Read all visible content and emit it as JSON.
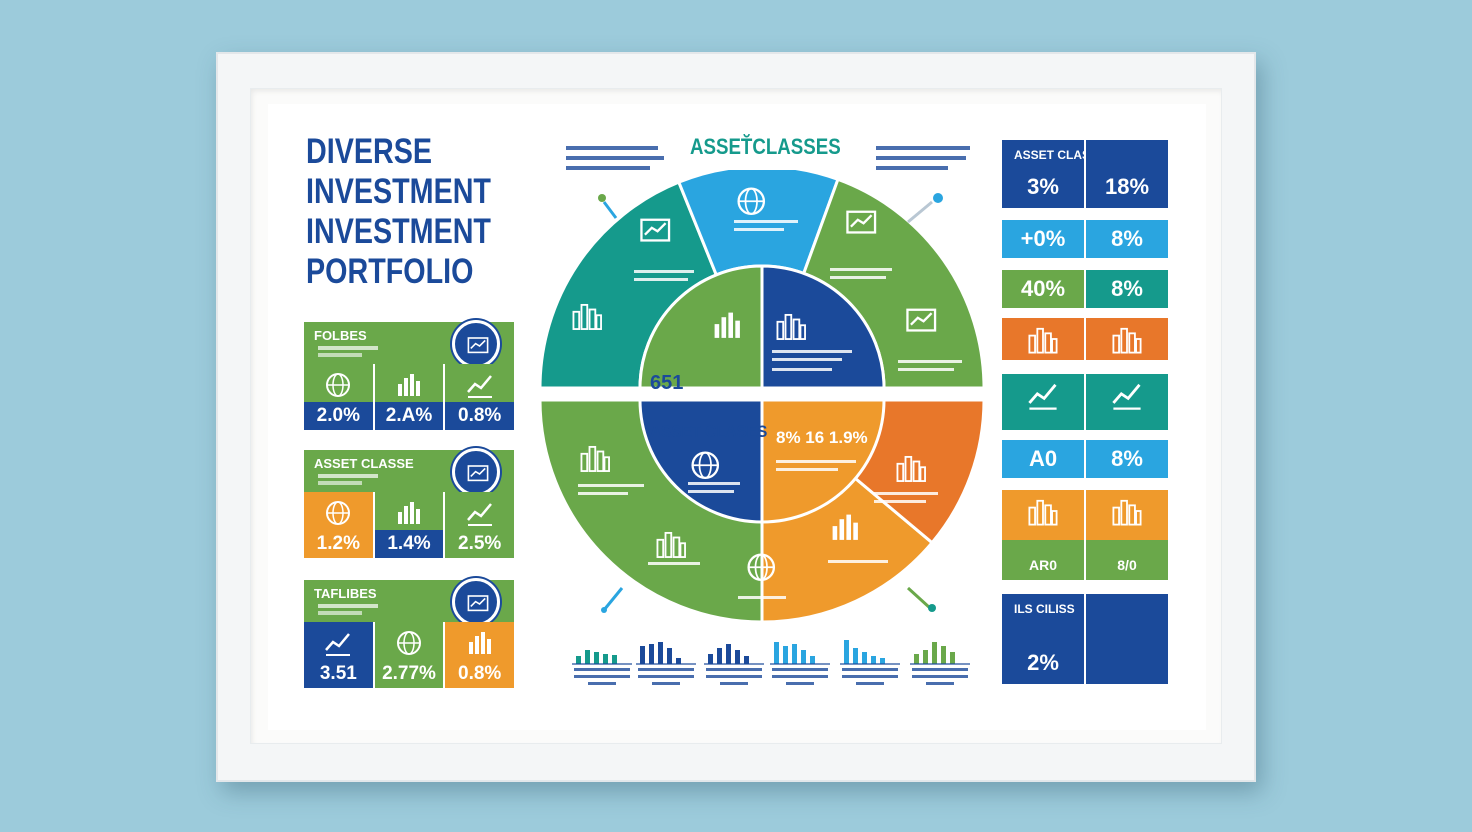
{
  "poster": {
    "title_lines": [
      "DIVERSE",
      "INVESTMENT",
      "INVESTMENT",
      "PORTFOLIO"
    ],
    "center_heading": "ASSET̆CLASSES"
  },
  "left_cards": [
    {
      "label": "FOLBES",
      "head_color": "#6aa84a",
      "badge_icon": "chart-board-icon",
      "cells": [
        {
          "icon": "globe-icon",
          "value": "2.0%",
          "bg": "#6aa84a",
          "val_bg": "#1b4a9a"
        },
        {
          "icon": "bar-icon",
          "value": "2.A%",
          "bg": "#6aa84a",
          "val_bg": "#1b4a9a"
        },
        {
          "icon": "trend-icon",
          "value": "0.8%",
          "bg": "#6aa84a",
          "val_bg": "#1b4a9a"
        }
      ]
    },
    {
      "label": "ASSET CLASSE",
      "head_color": "#6aa84a",
      "badge_icon": "chart-board-icon",
      "cells": [
        {
          "icon": "globe-icon",
          "value": "1.2%",
          "bg": "#ef9a2c",
          "val_bg": "#ef9a2c"
        },
        {
          "icon": "bar-icon",
          "value": "1.4%",
          "bg": "#6aa84a",
          "val_bg": "#1b4a9a"
        },
        {
          "icon": "trend-icon",
          "value": "2.5%",
          "bg": "#6aa84a",
          "val_bg": "#6aa84a"
        }
      ]
    },
    {
      "label": "TAFLIBES",
      "head_color": "#6aa84a",
      "badge_icon": "chart-board-icon",
      "cells": [
        {
          "icon": "trend-icon",
          "value": "3.51",
          "bg": "#1b4a9a",
          "val_bg": "#1b4a9a"
        },
        {
          "icon": "globe-icon",
          "value": "2.77%",
          "bg": "#6aa84a",
          "val_bg": "#6aa84a"
        },
        {
          "icon": "bar-icon",
          "value": "0.8%",
          "bg": "#ef9a2c",
          "val_bg": "#ef9a2c"
        }
      ]
    }
  ],
  "right_boxes": [
    {
      "label": "ASSET CLASSS",
      "left": "3%",
      "right": "18%",
      "color": "#1b4a9a",
      "height": 68
    },
    {
      "left": "+0%",
      "right": "8%",
      "color": "#2aa5e0",
      "height": 38
    },
    {
      "left": "40%",
      "right": "8%",
      "color_left": "#6aa84a",
      "color_right": "#159a8c",
      "height": 38
    },
    {
      "left": "",
      "right": "",
      "color": "#e8772a",
      "height": 42,
      "icon": "skyline-icon"
    },
    {
      "left": "",
      "right": "",
      "color": "#159a8c",
      "height": 56,
      "icon": "trend-icon"
    },
    {
      "left": "A0",
      "right": "8%",
      "color": "#2aa5e0",
      "height": 38
    },
    {
      "left": "AR0",
      "right": "8/0",
      "color": "#ef9a2c",
      "height": 90,
      "icon": "skyline-icon",
      "low_color": "#6aa84a"
    },
    {
      "label": "ILS CILISS",
      "left": "2%",
      "right": "",
      "color": "#1b4a9a",
      "height": 90
    }
  ],
  "pie_labels": {
    "pie_center_text": "651",
    "lower_left_title": "ASSET CLASES",
    "lower_right_title": "8% 16 1.9%"
  },
  "bar_groups": [
    {
      "color": "#159a8c",
      "heights": [
        8,
        14,
        12,
        10,
        9
      ]
    },
    {
      "color": "#1b4a9a",
      "heights": [
        18,
        20,
        22,
        16,
        6
      ]
    },
    {
      "color": "#1b4a9a",
      "heights": [
        10,
        16,
        20,
        14,
        8
      ]
    },
    {
      "color": "#2aa5e0",
      "heights": [
        22,
        18,
        20,
        14,
        8
      ]
    },
    {
      "color": "#2aa5e0",
      "heights": [
        24,
        16,
        12,
        8,
        6
      ]
    },
    {
      "color": "#6aa84a",
      "heights": [
        10,
        14,
        22,
        18,
        12
      ]
    }
  ]
}
